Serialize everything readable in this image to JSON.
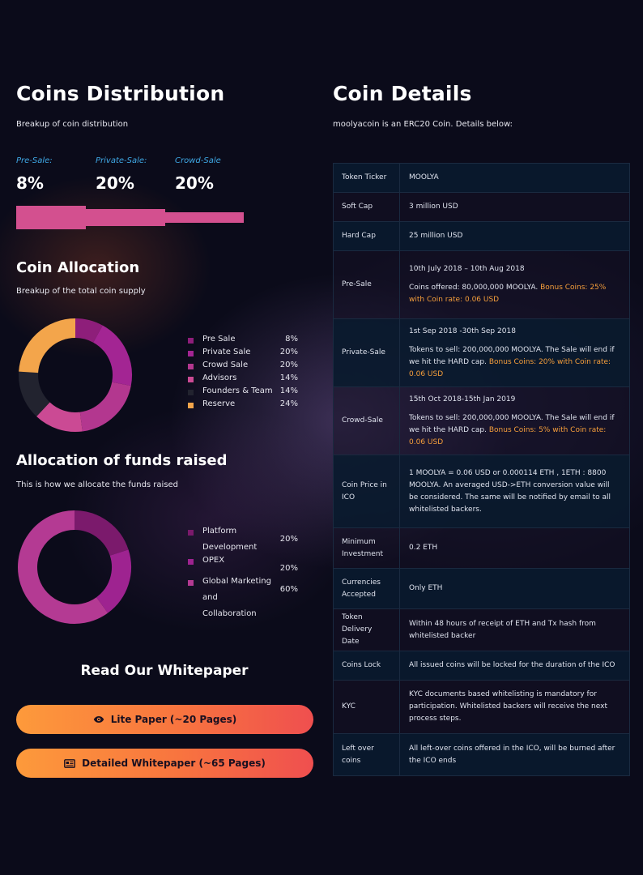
{
  "distribution": {
    "title": "Coins Distribution",
    "subtitle": "Breakup of coin distribution",
    "phases": [
      {
        "label": "Pre-Sale:",
        "value": "8%"
      },
      {
        "label": "Private-Sale:",
        "value": "20%"
      },
      {
        "label": "Crowd-Sale",
        "value": "20%"
      }
    ],
    "bar_color": "#d3508f"
  },
  "allocation": {
    "title": "Coin Allocation",
    "subtitle": "Breakup of the total coin supply",
    "items": [
      {
        "name": "Pre Sale",
        "value": "8%",
        "percent": 8,
        "color": "#8e1e7a"
      },
      {
        "name": "Private Sale",
        "value": "20%",
        "percent": 20,
        "color": "#a32593"
      },
      {
        "name": "Crowd Sale",
        "value": "20%",
        "percent": 20,
        "color": "#b3378f"
      },
      {
        "name": "Advisors",
        "value": "14%",
        "percent": 14,
        "color": "#cb4a94"
      },
      {
        "name": "Founders & Team",
        "value": "14%",
        "percent": 14,
        "color": "#22232f"
      },
      {
        "name": "Reserve",
        "value": "24%",
        "percent": 24,
        "color": "#f3a54b"
      }
    ]
  },
  "funds": {
    "title": "Allocation of funds raised",
    "subtitle": "This is how we allocate the funds raised",
    "items": [
      {
        "name": "Platform Development",
        "value": "20%",
        "percent": 20,
        "color": "#7b1a6c"
      },
      {
        "name": "OPEX",
        "value": "20%",
        "percent": 20,
        "color": "#9e2390"
      },
      {
        "name": "Global Marketing and Collaboration",
        "value": "60%",
        "percent": 60,
        "color": "#b43a93"
      }
    ]
  },
  "whitepaper": {
    "title": "Read Our Whitepaper",
    "lite_label": "Lite Paper (~20 Pages)",
    "detailed_label": "Detailed Whitepaper (~65 Pages)"
  },
  "details": {
    "title": "Coin Details",
    "subtitle": "moolyacoin is an ERC20 Coin. Details below:",
    "rows": [
      {
        "key": "Token Ticker",
        "lines": [
          {
            "text": "MOOLYA"
          }
        ]
      },
      {
        "key": "Soft Cap",
        "lines": [
          {
            "text": "3 million USD"
          }
        ]
      },
      {
        "key": "Hard Cap",
        "lines": [
          {
            "text": "25 million USD"
          }
        ]
      },
      {
        "key": "Pre-Sale",
        "lines": [
          {
            "text": "10th July 2018 – 10th Aug 2018"
          },
          {
            "text": "Coins offered: 80,000,000 MOOLYA. ",
            "highlight": "Bonus Coins: 25% with Coin rate: 0.06 USD"
          }
        ]
      },
      {
        "key": "Private-Sale",
        "lines": [
          {
            "text": "1st Sep 2018 -30th Sep 2018"
          },
          {
            "text": "Tokens to sell: 200,000,000 MOOLYA. The Sale will end if we hit the HARD cap. ",
            "highlight": "Bonus Coins: 20% with Coin rate: 0.06 USD"
          }
        ]
      },
      {
        "key": "Crowd-Sale",
        "lines": [
          {
            "text": "15th Oct 2018-15th Jan 2019"
          },
          {
            "text": "Tokens to sell: 200,000,000 MOOLYA. The Sale will end if we hit the HARD cap. ",
            "highlight": "Bonus Coins: 5% with Coin rate: 0.06 USD"
          }
        ]
      },
      {
        "key": "Coin Price in ICO",
        "lines": [
          {
            "text": "1 MOOLYA = 0.06 USD or 0.000114 ETH , 1ETH : 8800 MOOLYA. An averaged USD->ETH conversion value will be considered. The same will be notified by email to all whitelisted backers."
          }
        ]
      },
      {
        "key": "Minimum Investment",
        "lines": [
          {
            "text": "0.2 ETH"
          }
        ]
      },
      {
        "key": "Currencies Accepted",
        "lines": [
          {
            "text": "Only ETH"
          }
        ]
      },
      {
        "key": "Token Delivery Date",
        "lines": [
          {
            "text": "Within 48 hours of receipt of ETH and Tx hash from whitelisted backer"
          }
        ]
      },
      {
        "key": "Coins Lock",
        "lines": [
          {
            "text": "All issued coins will be locked for the duration of the ICO"
          }
        ]
      },
      {
        "key": "KYC",
        "lines": [
          {
            "text": "KYC documents based whitelisting is mandatory for participation. Whitelisted backers will receive the next process steps."
          }
        ]
      },
      {
        "key": "Left over coins",
        "lines": [
          {
            "text": "All left-over coins offered in the ICO, will be burned after the ICO ends"
          }
        ]
      }
    ]
  }
}
